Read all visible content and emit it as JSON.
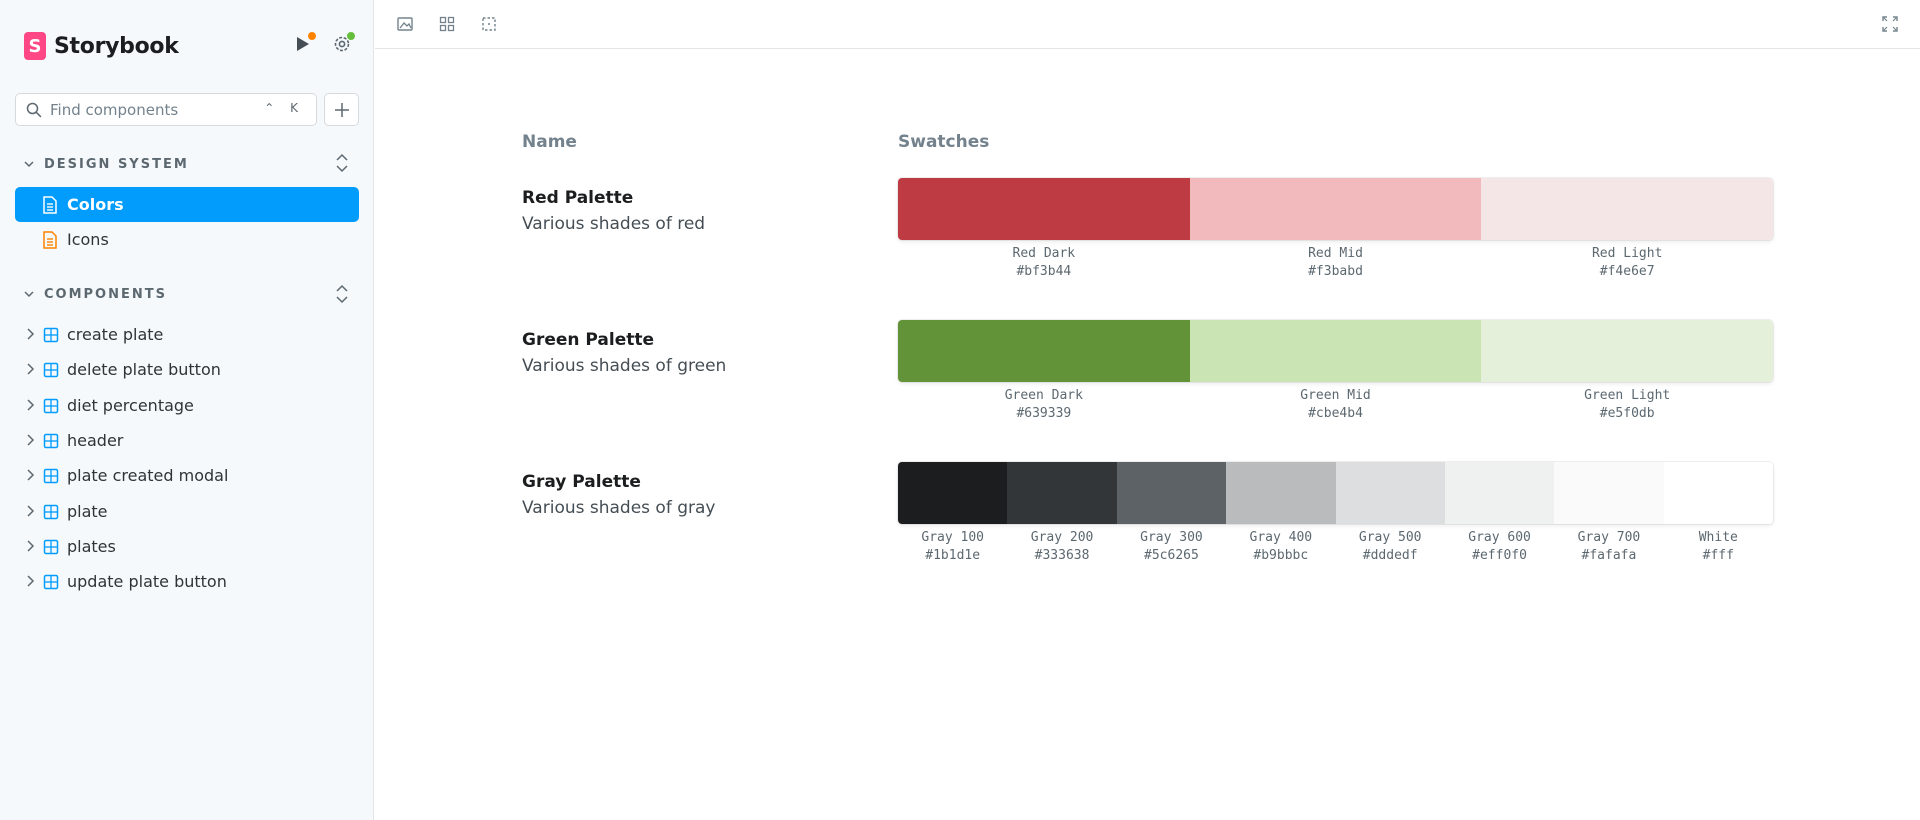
{
  "sidebar": {
    "brand": "Storybook",
    "search": {
      "placeholder": "Find components",
      "shortcut": "⌃ K"
    },
    "sections": [
      {
        "label": "DESIGN SYSTEM",
        "items": [
          {
            "label": "Colors",
            "active": true,
            "icon": "document-icon"
          },
          {
            "label": "Icons",
            "active": false,
            "icon": "document-icon"
          }
        ]
      },
      {
        "label": "COMPONENTS",
        "items": [
          {
            "label": "create plate"
          },
          {
            "label": "delete plate button"
          },
          {
            "label": "diet percentage"
          },
          {
            "label": "header"
          },
          {
            "label": "plate created modal"
          },
          {
            "label": "plate"
          },
          {
            "label": "plates"
          },
          {
            "label": "update plate button"
          }
        ]
      }
    ]
  },
  "main": {
    "headers": {
      "name": "Name",
      "swatches": "Swatches"
    },
    "palettes": [
      {
        "name": "Red Palette",
        "description": "Various shades of red",
        "swatches": [
          {
            "label": "Red Dark",
            "hex": "#bf3b44"
          },
          {
            "label": "Red Mid",
            "hex": "#f3babd"
          },
          {
            "label": "Red Light",
            "hex": "#f4e6e7"
          }
        ]
      },
      {
        "name": "Green Palette",
        "description": "Various shades of green",
        "swatches": [
          {
            "label": "Green Dark",
            "hex": "#639339"
          },
          {
            "label": "Green Mid",
            "hex": "#cbe4b4"
          },
          {
            "label": "Green Light",
            "hex": "#e5f0db"
          }
        ]
      },
      {
        "name": "Gray Palette",
        "description": "Various shades of gray",
        "swatches": [
          {
            "label": "Gray 100",
            "hex": "#1b1d1e"
          },
          {
            "label": "Gray 200",
            "hex": "#333638"
          },
          {
            "label": "Gray 300",
            "hex": "#5c6265"
          },
          {
            "label": "Gray 400",
            "hex": "#b9bbbc"
          },
          {
            "label": "Gray 500",
            "hex": "#dddedf"
          },
          {
            "label": "Gray 600",
            "hex": "#eff0f0"
          },
          {
            "label": "Gray 700",
            "hex": "#fafafa"
          },
          {
            "label": "White",
            "hex": "#fff"
          }
        ]
      }
    ]
  },
  "colors": {
    "accent": "#029cfd",
    "brand": "#ff4785",
    "component_icon": "#029cfd",
    "docs_icon": "#ff8300",
    "notify_dot": "#ff8300",
    "status_dot": "#66bf3c"
  }
}
